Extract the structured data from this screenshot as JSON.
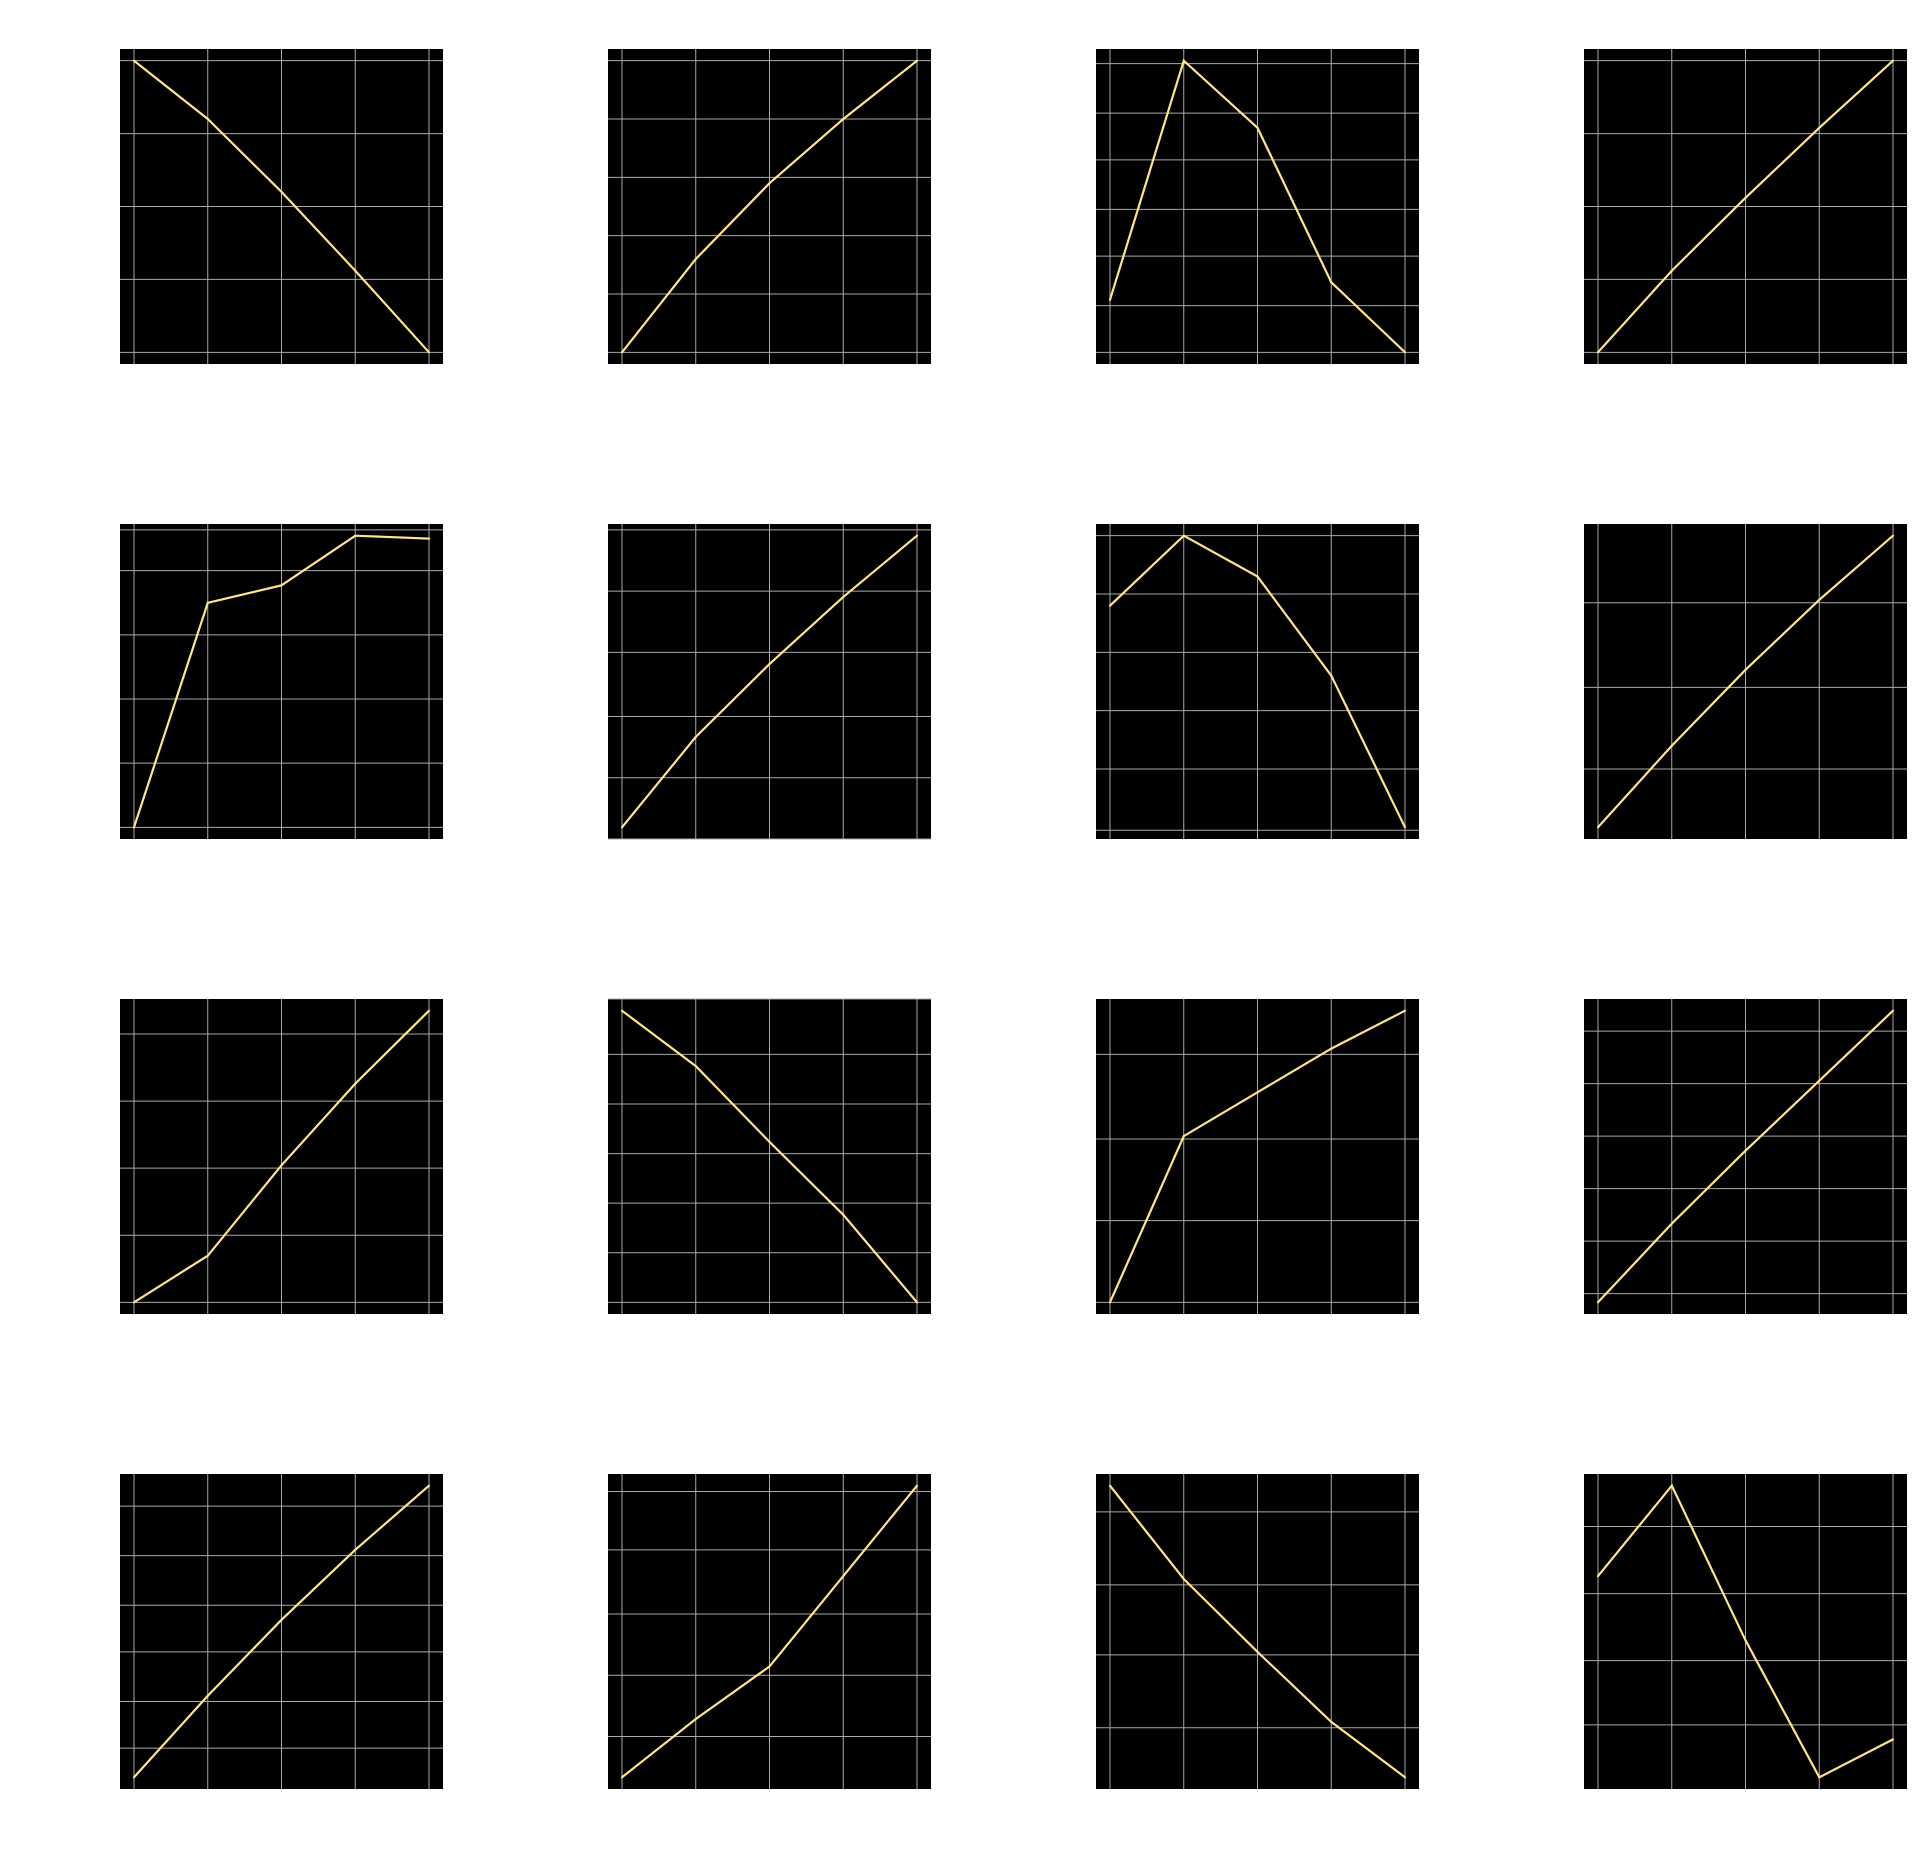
{
  "figure": {
    "rows": 4,
    "cols": 4,
    "background": "#ffffff",
    "axes_facecolor": "#000000",
    "grid": true,
    "grid_color": "#a9a9a9",
    "line_color": "#ffe680"
  },
  "chart_data": [
    {
      "type": "line",
      "grid": true,
      "x": [
        0,
        1,
        2,
        3,
        4
      ],
      "y": [
        1.0,
        0.8,
        0.55,
        0.28,
        0.0
      ],
      "ylim": [
        -0.04,
        1.04
      ],
      "yticks": [
        0.0,
        0.25,
        0.5,
        0.75,
        1.0
      ]
    },
    {
      "type": "line",
      "grid": true,
      "x": [
        0,
        1,
        2,
        3,
        4
      ],
      "y": [
        0.0,
        0.32,
        0.58,
        0.8,
        1.0
      ],
      "ylim": [
        -0.04,
        1.04
      ],
      "yticks": [
        0.0,
        0.2,
        0.4,
        0.6,
        0.8,
        1.0
      ]
    },
    {
      "type": "line",
      "grid": true,
      "x": [
        0,
        1,
        2,
        3,
        4
      ],
      "y": [
        0.18,
        1.0,
        0.77,
        0.24,
        0.0
      ],
      "ylim": [
        -0.04,
        1.04
      ],
      "yticks": [
        0.0,
        0.16,
        0.33,
        0.49,
        0.66,
        0.82,
        0.99
      ]
    },
    {
      "type": "line",
      "grid": true,
      "x": [
        0,
        1,
        2,
        3,
        4
      ],
      "y": [
        0.0,
        0.28,
        0.53,
        0.77,
        1.0
      ],
      "ylim": [
        -0.04,
        1.04
      ],
      "yticks": [
        0.0,
        0.25,
        0.5,
        0.75,
        1.0
      ]
    },
    {
      "type": "line",
      "grid": true,
      "x": [
        0,
        1,
        2,
        3,
        4
      ],
      "y": [
        0.0,
        0.77,
        0.83,
        1.0,
        0.99
      ],
      "ylim": [
        -0.04,
        1.04
      ],
      "yticks": [
        0.0,
        0.22,
        0.44,
        0.66,
        0.88,
        1.02
      ]
    },
    {
      "type": "line",
      "grid": true,
      "x": [
        0,
        1,
        2,
        3,
        4
      ],
      "y": [
        0.0,
        0.31,
        0.56,
        0.79,
        1.0
      ],
      "ylim": [
        -0.04,
        1.04
      ],
      "yticks": [
        -0.04,
        0.17,
        0.38,
        0.6,
        0.81,
        1.02
      ]
    },
    {
      "type": "line",
      "grid": true,
      "x": [
        0,
        1,
        2,
        3,
        4
      ],
      "y": [
        0.76,
        1.0,
        0.86,
        0.52,
        0.0
      ],
      "ylim": [
        -0.04,
        1.04
      ],
      "yticks": [
        -0.01,
        0.2,
        0.4,
        0.6,
        0.8,
        1.0
      ]
    },
    {
      "type": "line",
      "grid": true,
      "x": [
        0,
        1,
        2,
        3,
        4
      ],
      "y": [
        0.0,
        0.28,
        0.54,
        0.78,
        1.0
      ],
      "ylim": [
        -0.04,
        1.04
      ],
      "yticks": [
        0.2,
        0.48,
        0.77,
        1.05
      ]
    },
    {
      "type": "line",
      "grid": true,
      "x": [
        0,
        1,
        2,
        3,
        4
      ],
      "y": [
        0.0,
        0.16,
        0.47,
        0.75,
        1.0
      ],
      "ylim": [
        -0.04,
        1.04
      ],
      "yticks": [
        0.0,
        0.23,
        0.46,
        0.69,
        0.92
      ]
    },
    {
      "type": "line",
      "grid": true,
      "x": [
        0,
        1,
        2,
        3,
        4
      ],
      "y": [
        1.0,
        0.81,
        0.55,
        0.3,
        0.0
      ],
      "ylim": [
        -0.04,
        1.04
      ],
      "yticks": [
        0.0,
        0.17,
        0.34,
        0.51,
        0.68,
        0.85,
        1.04
      ]
    },
    {
      "type": "line",
      "grid": true,
      "x": [
        0,
        1,
        2,
        3,
        4
      ],
      "y": [
        0.0,
        0.57,
        0.72,
        0.87,
        1.0
      ],
      "ylim": [
        -0.04,
        1.04
      ],
      "yticks": [
        0.0,
        0.28,
        0.56,
        0.85
      ]
    },
    {
      "type": "line",
      "grid": true,
      "x": [
        0,
        1,
        2,
        3,
        4
      ],
      "y": [
        0.0,
        0.27,
        0.52,
        0.76,
        1.0
      ],
      "ylim": [
        -0.04,
        1.04
      ],
      "yticks": [
        0.03,
        0.21,
        0.39,
        0.57,
        0.75,
        0.93
      ]
    },
    {
      "type": "line",
      "grid": true,
      "x": [
        0,
        1,
        2,
        3,
        4
      ],
      "y": [
        0.0,
        0.28,
        0.54,
        0.78,
        1.0
      ],
      "ylim": [
        -0.04,
        1.04
      ],
      "yticks": [
        0.1,
        0.26,
        0.43,
        0.59,
        0.76,
        0.93
      ]
    },
    {
      "type": "line",
      "grid": true,
      "x": [
        0,
        1,
        2,
        3,
        4
      ],
      "y": [
        0.0,
        0.2,
        0.38,
        0.69,
        1.0
      ],
      "ylim": [
        -0.04,
        1.04
      ],
      "yticks": [
        0.14,
        0.35,
        0.56,
        0.78,
        0.98
      ]
    },
    {
      "type": "line",
      "grid": true,
      "x": [
        0,
        1,
        2,
        3,
        4
      ],
      "y": [
        1.0,
        0.68,
        0.43,
        0.19,
        0.0
      ],
      "ylim": [
        -0.04,
        1.04
      ],
      "yticks": [
        0.17,
        0.42,
        0.66,
        0.91
      ]
    },
    {
      "type": "line",
      "grid": true,
      "x": [
        0,
        1,
        2,
        3,
        4
      ],
      "y": [
        0.69,
        1.0,
        0.47,
        0.0,
        0.13
      ],
      "ylim": [
        -0.04,
        1.04
      ],
      "yticks": [
        0.18,
        0.4,
        0.63,
        0.86
      ]
    }
  ]
}
